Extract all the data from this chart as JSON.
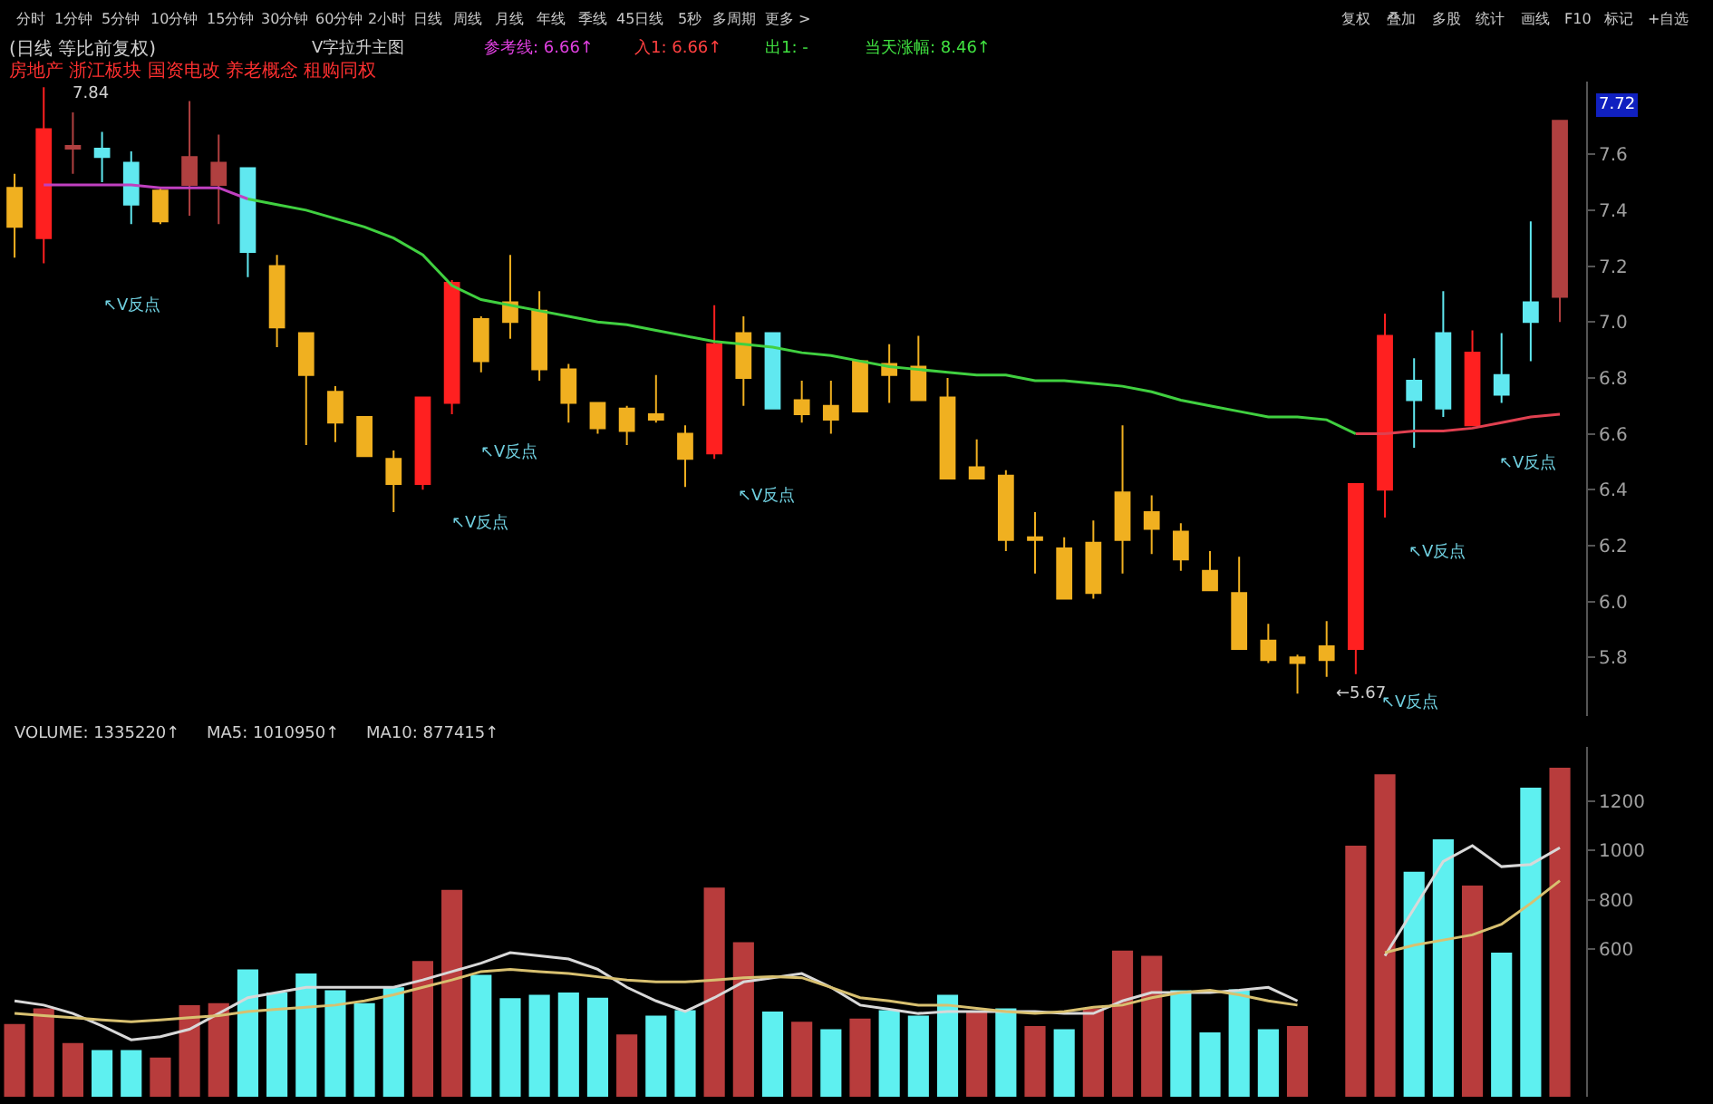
{
  "chart_data": [
    {
      "type": "other",
      "annotations": [
        "分时",
        "1分钟",
        "5分钟",
        "10分钟",
        "15分钟",
        "30分钟",
        "60分钟",
        "2小时",
        "日线",
        "周线",
        "月线",
        "年线",
        "季线",
        "45日线",
        "5秒",
        "多周期",
        "更多 >",
        "复权",
        "叠加",
        "多股",
        "统计",
        "画线",
        "F10",
        "标记",
        "+自选"
      ]
    },
    {
      "type": "candlestick",
      "title": "(日线 等比前复权)",
      "subtitle": "房地产 浙江板块 国资电改 养老概念 租购同权",
      "categories": [
        null,
        null,
        null,
        null,
        null,
        null,
        null,
        null,
        null,
        null,
        null,
        null,
        null,
        null,
        null,
        null,
        null,
        null,
        null,
        null,
        null,
        null,
        null,
        null,
        null,
        null,
        null,
        null,
        null,
        null,
        null,
        null,
        null,
        null,
        null,
        null,
        null,
        null,
        null,
        null,
        null,
        null,
        null,
        null,
        null,
        null,
        null,
        null,
        null,
        null,
        null,
        null,
        null,
        null
      ],
      "ohlc": [
        [
          7.48,
          7.53,
          7.23,
          7.34
        ],
        [
          7.3,
          7.84,
          7.21,
          7.69
        ],
        [
          7.62,
          7.75,
          7.53,
          7.63
        ],
        [
          7.62,
          7.68,
          7.5,
          7.59
        ],
        [
          7.57,
          7.61,
          7.35,
          7.42
        ],
        [
          7.47,
          7.48,
          7.35,
          7.36
        ],
        [
          7.49,
          7.79,
          7.38,
          7.59
        ],
        [
          7.49,
          7.67,
          7.35,
          7.57
        ],
        [
          7.55,
          7.55,
          7.16,
          7.25
        ],
        [
          7.2,
          7.24,
          6.91,
          6.98
        ],
        [
          6.96,
          6.96,
          6.56,
          6.81
        ],
        [
          6.75,
          6.77,
          6.57,
          6.64
        ],
        [
          6.66,
          6.66,
          6.52,
          6.52
        ],
        [
          6.51,
          6.54,
          6.32,
          6.42
        ],
        [
          6.42,
          6.73,
          6.4,
          6.73
        ],
        [
          6.71,
          7.15,
          6.67,
          7.14
        ],
        [
          7.01,
          7.02,
          6.82,
          6.86
        ],
        [
          7.07,
          7.24,
          6.94,
          7.0
        ],
        [
          7.04,
          7.11,
          6.79,
          6.83
        ],
        [
          6.83,
          6.85,
          6.64,
          6.71
        ],
        [
          6.71,
          6.71,
          6.6,
          6.62
        ],
        [
          6.69,
          6.7,
          6.56,
          6.61
        ],
        [
          6.67,
          6.81,
          6.64,
          6.65
        ],
        [
          6.6,
          6.63,
          6.41,
          6.51
        ],
        [
          6.53,
          7.06,
          6.51,
          6.92
        ],
        [
          6.96,
          7.02,
          6.7,
          6.8
        ],
        [
          6.96,
          6.96,
          6.69,
          6.69
        ],
        [
          6.72,
          6.79,
          6.64,
          6.67
        ],
        [
          6.7,
          6.79,
          6.6,
          6.65
        ],
        [
          6.86,
          6.86,
          6.68,
          6.68
        ],
        [
          6.85,
          6.92,
          6.71,
          6.81
        ],
        [
          6.84,
          6.95,
          6.72,
          6.72
        ],
        [
          6.73,
          6.8,
          6.44,
          6.44
        ],
        [
          6.48,
          6.58,
          6.44,
          6.44
        ],
        [
          6.45,
          6.47,
          6.18,
          6.22
        ],
        [
          6.23,
          6.32,
          6.1,
          6.22
        ],
        [
          6.19,
          6.23,
          6.01,
          6.01
        ],
        [
          6.21,
          6.29,
          6.01,
          6.03
        ],
        [
          6.39,
          6.63,
          6.1,
          6.22
        ],
        [
          6.32,
          6.38,
          6.17,
          6.26
        ],
        [
          6.25,
          6.28,
          6.11,
          6.15
        ],
        [
          6.11,
          6.18,
          6.04,
          6.04
        ],
        [
          6.03,
          6.16,
          5.83,
          5.83
        ],
        [
          5.86,
          5.92,
          5.78,
          5.79
        ],
        [
          5.8,
          5.81,
          5.67,
          5.78
        ],
        [
          5.84,
          5.93,
          5.73,
          5.79
        ],
        [
          5.83,
          6.42,
          5.74,
          6.42
        ],
        [
          6.4,
          7.03,
          6.3,
          6.95
        ],
        [
          6.79,
          6.87,
          6.55,
          6.72
        ],
        [
          6.96,
          7.11,
          6.66,
          6.69
        ],
        [
          6.63,
          6.97,
          6.63,
          6.89
        ],
        [
          6.81,
          6.96,
          6.71,
          6.74
        ],
        [
          7.07,
          7.36,
          6.86,
          7.0
        ],
        [
          7.09,
          7.72,
          7.0,
          7.72
        ]
      ],
      "colors": [
        "#f0b020",
        "#ff2020",
        "#b04040",
        "#60e8f0",
        "#60e8f0",
        "#f0b020",
        "#b04040",
        "#b04040",
        "#60e8f0",
        "#f0b020",
        "#f0b020",
        "#f0b020",
        "#f0b020",
        "#f0b020",
        "#ff2020",
        "#ff2020",
        "#f0b020",
        "#f0b020",
        "#f0b020",
        "#f0b020",
        "#f0b020",
        "#f0b020",
        "#f0b020",
        "#f0b020",
        "#ff2020",
        "#f0b020",
        "#60e8f0",
        "#f0b020",
        "#f0b020",
        "#f0b020",
        "#f0b020",
        "#f0b020",
        "#f0b020",
        "#f0b020",
        "#f0b020",
        "#f0b020",
        "#f0b020",
        "#f0b020",
        "#f0b020",
        "#f0b020",
        "#f0b020",
        "#f0b020",
        "#f0b020",
        "#f0b020",
        "#f0b020",
        "#f0b020",
        "#ff2020",
        "#ff2020",
        "#60e8f0",
        "#60e8f0",
        "#ff2020",
        "#60e8f0",
        "#60e8f0",
        "#b04040"
      ],
      "series": [
        {
          "type": "line",
          "color": "#c040c0",
          "values": [
            null,
            7.49,
            7.49,
            7.49,
            7.49,
            7.48,
            7.48,
            7.48,
            7.44,
            null,
            null,
            null,
            null,
            null,
            null,
            null,
            null,
            null,
            null,
            null,
            null,
            null,
            null,
            null,
            null,
            null,
            null,
            null,
            null,
            null,
            null,
            null,
            null,
            null,
            null,
            null,
            null,
            null,
            null,
            null,
            null,
            null,
            null,
            null,
            null,
            null,
            null,
            null,
            null,
            null,
            null,
            null,
            null,
            null
          ]
        },
        {
          "type": "line",
          "color": "#40d040",
          "values": [
            null,
            null,
            null,
            null,
            null,
            null,
            null,
            null,
            7.44,
            7.42,
            7.4,
            7.37,
            7.34,
            7.3,
            7.24,
            7.13,
            7.08,
            7.06,
            7.04,
            7.02,
            7.0,
            6.99,
            6.97,
            6.95,
            6.93,
            6.92,
            6.91,
            6.89,
            6.88,
            6.86,
            6.84,
            6.83,
            6.82,
            6.81,
            6.81,
            6.79,
            6.79,
            6.78,
            6.77,
            6.75,
            6.72,
            6.7,
            6.68,
            6.66,
            6.66,
            6.65,
            6.6,
            null,
            null,
            null,
            null,
            null,
            null,
            null
          ]
        },
        {
          "type": "line",
          "color": "#e04050",
          "values": [
            null,
            null,
            null,
            null,
            null,
            null,
            null,
            null,
            null,
            null,
            null,
            null,
            null,
            null,
            null,
            null,
            null,
            null,
            null,
            null,
            null,
            null,
            null,
            null,
            null,
            null,
            null,
            null,
            null,
            null,
            null,
            null,
            null,
            null,
            null,
            null,
            null,
            null,
            null,
            null,
            null,
            null,
            null,
            null,
            null,
            null,
            6.6,
            6.6,
            6.61,
            6.61,
            6.62,
            6.64,
            6.66,
            6.67
          ]
        }
      ],
      "ylim": [
        5.59,
        7.86
      ],
      "yticks": [
        5.8,
        {
          "value": 6.0,
          "label": "6.0"
        },
        6.2,
        6.4,
        6.6,
        6.8,
        {
          "value": 7.0,
          "label": "7.0"
        },
        7.2,
        7.4,
        7.6
      ],
      "tick_labels": "y",
      "annotations": [
        "V字拉升主图",
        "参考线: 6.66↑",
        "入1: 6.66↑",
        "出1: -",
        "当天涨幅: 8.46↑",
        "7.84",
        "←5.67",
        "7.72",
        "↖V反点",
        "↖V反点",
        "↖V反点",
        "↖V反点",
        "↖V反点",
        "↖V反点",
        "↖V反点"
      ]
    },
    {
      "type": "bar",
      "categories": [
        null,
        null,
        null,
        null,
        null,
        null,
        null,
        null,
        null,
        null,
        null,
        null,
        null,
        null,
        null,
        null,
        null,
        null,
        null,
        null,
        null,
        null,
        null,
        null,
        null,
        null,
        null,
        null,
        null,
        null,
        null,
        null,
        null,
        null,
        null,
        null,
        null,
        null,
        null,
        null,
        null,
        null,
        null,
        null,
        null,
        null,
        null,
        null,
        null,
        null,
        null,
        null,
        null,
        null
      ],
      "series": [
        {
          "type": "bar",
          "colors": [
            "#b83c3c",
            "#b83c3c",
            "#b83c3c",
            "#5ef0f0",
            "#5ef0f0",
            "#b83c3c",
            "#b83c3c",
            "#b83c3c",
            "#5ef0f0",
            "#5ef0f0",
            "#5ef0f0",
            "#5ef0f0",
            "#5ef0f0",
            "#5ef0f0",
            "#b83c3c",
            "#b83c3c",
            "#5ef0f0",
            "#5ef0f0",
            "#5ef0f0",
            "#5ef0f0",
            "#5ef0f0",
            "#b83c3c",
            "#5ef0f0",
            "#5ef0f0",
            "#b83c3c",
            "#b83c3c",
            "#5ef0f0",
            "#b83c3c",
            "#5ef0f0",
            "#b83c3c",
            "#5ef0f0",
            "#5ef0f0",
            "#5ef0f0",
            "#b83c3c",
            "#5ef0f0",
            "#b83c3c",
            "#5ef0f0",
            "#b83c3c",
            "#b83c3c",
            "#b83c3c",
            "#5ef0f0",
            "#5ef0f0",
            "#5ef0f0",
            "#5ef0f0",
            "#b83c3c",
            "#b83c3c",
            "#b83c3c",
            "#b83c3c",
            "#5ef0f0",
            "#5ef0f0",
            "#b83c3c",
            "#5ef0f0",
            "#5ef0f0",
            "#b83c3c"
          ],
          "values": [
            295,
            359,
            218,
            189,
            189,
            159,
            372,
            380,
            517,
            423,
            500,
            432,
            380,
            444,
            551,
            840,
            495,
            400,
            414,
            423,
            402,
            253,
            329,
            351,
            849,
            627,
            346,
            304,
            274,
            317,
            351,
            329,
            414,
            346,
            359,
            287,
            274,
            359,
            593,
            572,
            432,
            261,
            436,
            274,
            287,
            null,
            1019,
            1309,
            913,
            1045,
            857,
            585,
            1254,
            1335
          ]
        },
        {
          "type": "line",
          "color": "#d8d8d8",
          "values": [
            389,
            372,
            338,
            287,
            231,
            244,
            274,
            338,
            402,
            423,
            444,
            444,
            444,
            444,
            474,
            508,
            542,
            585,
            572,
            559,
            517,
            444,
            389,
            346,
            402,
            466,
            483,
            500,
            444,
            372,
            355,
            338,
            346,
            346,
            346,
            346,
            338,
            338,
            389,
            423,
            423,
            423,
            432,
            444,
            389,
            null,
            null,
            572,
            764,
            955,
            1019,
            934,
            943,
            1011
          ]
        },
        {
          "type": "line",
          "color": "#d8c070",
          "values": [
            338,
            329,
            321,
            312,
            304,
            312,
            321,
            329,
            346,
            355,
            363,
            372,
            389,
            414,
            444,
            474,
            508,
            517,
            508,
            500,
            487,
            474,
            466,
            466,
            474,
            483,
            487,
            483,
            444,
            402,
            389,
            372,
            372,
            359,
            346,
            338,
            346,
            363,
            372,
            402,
            423,
            432,
            414,
            389,
            372,
            null,
            null,
            585,
            615,
            636,
            657,
            700,
            785,
            877
          ]
        }
      ],
      "ylim": [
        0,
        1420
      ],
      "yticks": [
        600,
        800,
        1000,
        1200
      ],
      "tick_labels": "y",
      "annotations": [
        "VOLUME: 1335220↑",
        "MA5: 1010950↑",
        "MA10: 877415↑"
      ]
    }
  ]
}
